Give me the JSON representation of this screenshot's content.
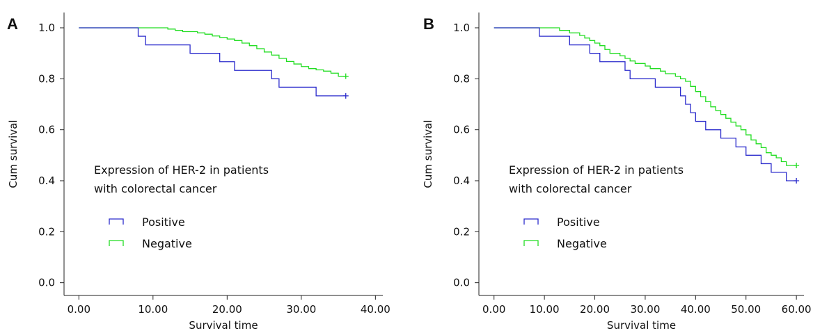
{
  "chart_data": [
    {
      "panel": "A",
      "type": "line",
      "subtype": "kaplan-meier survival curve",
      "xlabel": "Survival time",
      "ylabel": "Cum survival",
      "xlim": [
        -2,
        41
      ],
      "ylim": [
        -0.05,
        1.06
      ],
      "xticks": [
        0,
        10,
        20,
        30,
        40
      ],
      "xtick_labels": [
        "0.00",
        "10.00",
        "20.00",
        "30.00",
        "40.00"
      ],
      "yticks": [
        0,
        0.2,
        0.4,
        0.6,
        0.8,
        1.0
      ],
      "ytick_labels": [
        "0.0",
        "0.2",
        "0.4",
        "0.6",
        "0.8",
        "1.0"
      ],
      "legend": {
        "title_lines": [
          "Expression of HER-2 in patients",
          "with colorectal cancer"
        ],
        "placement": "center-left"
      },
      "series": [
        {
          "name": "Positive",
          "color": "#2b2bcc",
          "steps": [
            [
              0,
              1.0
            ],
            [
              8,
              0.967
            ],
            [
              9,
              0.933
            ],
            [
              15,
              0.9
            ],
            [
              19,
              0.867
            ],
            [
              21,
              0.833
            ],
            [
              26,
              0.8
            ],
            [
              27,
              0.767
            ],
            [
              32,
              0.733
            ],
            [
              36,
              0.733
            ]
          ],
          "censor_x": [
            36
          ]
        },
        {
          "name": "Negative",
          "color": "#22dd22",
          "steps": [
            [
              0,
              1.0
            ],
            [
              12,
              0.995
            ],
            [
              13,
              0.99
            ],
            [
              14,
              0.985
            ],
            [
              16,
              0.98
            ],
            [
              17,
              0.975
            ],
            [
              18,
              0.968
            ],
            [
              19,
              0.962
            ],
            [
              20,
              0.956
            ],
            [
              21,
              0.95
            ],
            [
              22,
              0.94
            ],
            [
              23,
              0.93
            ],
            [
              24,
              0.918
            ],
            [
              25,
              0.905
            ],
            [
              26,
              0.893
            ],
            [
              27,
              0.88
            ],
            [
              28,
              0.868
            ],
            [
              29,
              0.858
            ],
            [
              30,
              0.848
            ],
            [
              31,
              0.84
            ],
            [
              32,
              0.835
            ],
            [
              33,
              0.83
            ],
            [
              34,
              0.822
            ],
            [
              35,
              0.81
            ],
            [
              36,
              0.81
            ]
          ],
          "censor_x": [
            36
          ]
        }
      ]
    },
    {
      "panel": "B",
      "type": "line",
      "subtype": "kaplan-meier survival curve",
      "xlabel": "Survival time",
      "ylabel": "Cum survival",
      "xlim": [
        -3,
        61.5
      ],
      "ylim": [
        -0.05,
        1.06
      ],
      "xticks": [
        0,
        10,
        20,
        30,
        40,
        50,
        60
      ],
      "xtick_labels": [
        "0.00",
        "10.00",
        "20.00",
        "30.00",
        "40.00",
        "50.00",
        "60.00"
      ],
      "yticks": [
        0,
        0.2,
        0.4,
        0.6,
        0.8,
        1.0
      ],
      "ytick_labels": [
        "0.0",
        "0.2",
        "0.4",
        "0.6",
        "0.8",
        "1.0"
      ],
      "legend": {
        "title_lines": [
          "Expression of HER-2 in patients",
          "with colorectal cancer"
        ],
        "placement": "center-left"
      },
      "series": [
        {
          "name": "Positive",
          "color": "#2b2bcc",
          "steps": [
            [
              0,
              1.0
            ],
            [
              9,
              0.967
            ],
            [
              15,
              0.933
            ],
            [
              19,
              0.9
            ],
            [
              21,
              0.867
            ],
            [
              26,
              0.833
            ],
            [
              27,
              0.8
            ],
            [
              32,
              0.767
            ],
            [
              37,
              0.733
            ],
            [
              38,
              0.7
            ],
            [
              39,
              0.667
            ],
            [
              40,
              0.633
            ],
            [
              42,
              0.6
            ],
            [
              45,
              0.567
            ],
            [
              48,
              0.533
            ],
            [
              50,
              0.5
            ],
            [
              53,
              0.467
            ],
            [
              55,
              0.433
            ],
            [
              58,
              0.4
            ],
            [
              60,
              0.4
            ]
          ],
          "censor_x": [
            60
          ]
        },
        {
          "name": "Negative",
          "color": "#22dd22",
          "steps": [
            [
              0,
              1.0
            ],
            [
              13,
              0.99
            ],
            [
              15,
              0.98
            ],
            [
              17,
              0.97
            ],
            [
              18,
              0.96
            ],
            [
              19,
              0.95
            ],
            [
              20,
              0.94
            ],
            [
              21,
              0.93
            ],
            [
              22,
              0.915
            ],
            [
              23,
              0.9
            ],
            [
              25,
              0.89
            ],
            [
              26,
              0.88
            ],
            [
              27,
              0.87
            ],
            [
              28,
              0.86
            ],
            [
              30,
              0.85
            ],
            [
              31,
              0.84
            ],
            [
              33,
              0.83
            ],
            [
              34,
              0.82
            ],
            [
              36,
              0.81
            ],
            [
              37,
              0.8
            ],
            [
              38,
              0.79
            ],
            [
              39,
              0.77
            ],
            [
              40,
              0.75
            ],
            [
              41,
              0.73
            ],
            [
              42,
              0.71
            ],
            [
              43,
              0.69
            ],
            [
              44,
              0.675
            ],
            [
              45,
              0.66
            ],
            [
              46,
              0.645
            ],
            [
              47,
              0.63
            ],
            [
              48,
              0.615
            ],
            [
              49,
              0.6
            ],
            [
              50,
              0.58
            ],
            [
              51,
              0.56
            ],
            [
              52,
              0.545
            ],
            [
              53,
              0.53
            ],
            [
              54,
              0.51
            ],
            [
              55,
              0.5
            ],
            [
              56,
              0.49
            ],
            [
              57,
              0.475
            ],
            [
              58,
              0.46
            ],
            [
              60,
              0.46
            ]
          ],
          "censor_x": [
            60
          ]
        }
      ]
    }
  ]
}
